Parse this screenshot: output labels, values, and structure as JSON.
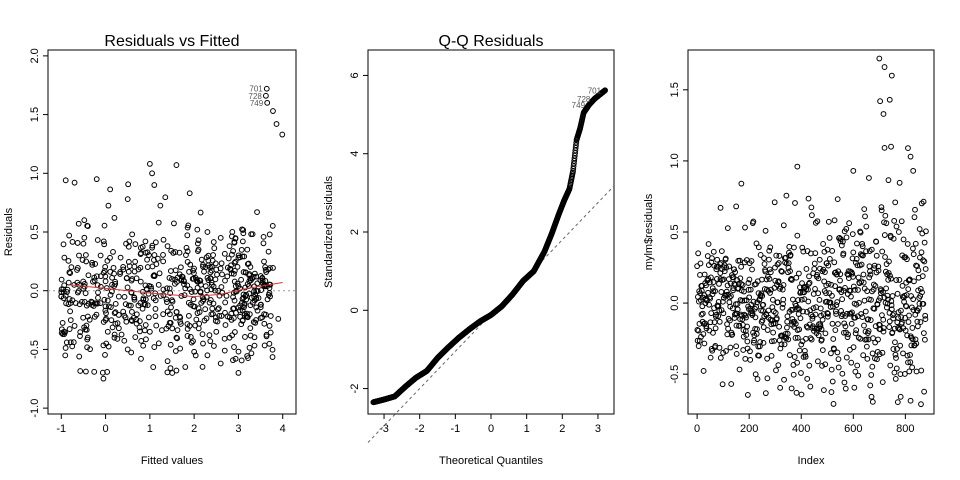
{
  "chart_data": [
    {
      "type": "scatter",
      "title": "Residuals vs Fitted",
      "xlabel": "Fitted values",
      "ylabel": "Residuals",
      "xlim": [
        -1.3,
        4.3
      ],
      "ylim": [
        -1.05,
        2.05
      ],
      "x_ticks": [
        -1,
        0,
        1,
        2,
        3,
        4
      ],
      "y_ticks": [
        -1.0,
        -0.5,
        0.0,
        0.5,
        1.0,
        1.5,
        2.0
      ],
      "x_tick_labels": [
        "-1",
        "0",
        "1",
        "2",
        "3",
        "4"
      ],
      "y_tick_labels": [
        "-1.0",
        "-0.5",
        "0.0",
        "0.5",
        "1.0",
        "1.5",
        "2.0"
      ],
      "reference_line": {
        "y": 0,
        "style": "dotted",
        "color": "#999999"
      },
      "smoother": {
        "color": "#dd3333",
        "points": [
          [
            -0.8,
            0.05
          ],
          [
            0.0,
            0.02
          ],
          [
            1.0,
            -0.02
          ],
          [
            2.0,
            -0.05
          ],
          [
            2.6,
            -0.03
          ],
          [
            3.2,
            0.02
          ],
          [
            4.0,
            0.07
          ]
        ]
      },
      "points": [
        [
          -0.9,
          0.94
        ],
        [
          -0.7,
          0.92
        ],
        [
          -0.2,
          0.95
        ],
        [
          1.0,
          1.08
        ],
        [
          1.05,
          1.0
        ],
        [
          1.6,
          1.07
        ],
        [
          1.1,
          0.9
        ],
        [
          0.5,
          0.78
        ],
        [
          1.9,
          0.83
        ],
        [
          -0.6,
          0.3
        ],
        [
          -0.4,
          0.55
        ],
        [
          0.2,
          0.62
        ],
        [
          0.6,
          0.48
        ],
        [
          1.2,
          0.58
        ],
        [
          2.3,
          0.5
        ],
        [
          2.8,
          0.38
        ],
        [
          3.2,
          0.35
        ],
        [
          -0.8,
          0.15
        ],
        [
          -0.3,
          0.22
        ],
        [
          0.1,
          0.28
        ],
        [
          0.4,
          0.18
        ],
        [
          0.8,
          0.32
        ],
        [
          1.3,
          0.25
        ],
        [
          1.7,
          0.2
        ],
        [
          2.1,
          0.35
        ],
        [
          2.5,
          0.18
        ],
        [
          3.0,
          0.28
        ],
        [
          3.4,
          0.12
        ],
        [
          -1.0,
          -0.05
        ],
        [
          -0.6,
          0.05
        ],
        [
          -0.3,
          -0.1
        ],
        [
          0.0,
          0.08
        ],
        [
          0.3,
          -0.05
        ],
        [
          0.6,
          0.1
        ],
        [
          0.9,
          -0.12
        ],
        [
          1.2,
          0.05
        ],
        [
          1.5,
          -0.08
        ],
        [
          1.8,
          0.02
        ],
        [
          2.1,
          -0.15
        ],
        [
          2.4,
          0.05
        ],
        [
          2.7,
          -0.1
        ],
        [
          3.0,
          0.04
        ],
        [
          3.3,
          -0.06
        ],
        [
          3.6,
          0.05
        ],
        [
          3.7,
          -0.02
        ],
        [
          -0.7,
          -0.3
        ],
        [
          -0.4,
          -0.22
        ],
        [
          0.0,
          -0.25
        ],
        [
          0.3,
          -0.32
        ],
        [
          0.7,
          -0.28
        ],
        [
          1.0,
          -0.35
        ],
        [
          1.3,
          -0.2
        ],
        [
          1.6,
          -0.4
        ],
        [
          1.9,
          -0.3
        ],
        [
          2.2,
          -0.45
        ],
        [
          2.5,
          -0.35
        ],
        [
          2.8,
          -0.4
        ],
        [
          3.1,
          -0.25
        ],
        [
          0.5,
          -0.5
        ],
        [
          1.1,
          -0.48
        ],
        [
          1.4,
          -0.6
        ],
        [
          1.8,
          -0.65
        ],
        [
          2.3,
          -0.55
        ],
        [
          2.6,
          -0.62
        ],
        [
          3.0,
          -0.7
        ],
        [
          0.8,
          -0.58
        ],
        [
          1.6,
          -0.68
        ],
        [
          2.0,
          -0.52
        ],
        [
          2.9,
          -0.48
        ],
        [
          3.9,
          -0.24
        ],
        [
          -0.5,
          0.4
        ],
        [
          0.9,
          0.42
        ],
        [
          1.4,
          0.38
        ],
        [
          2.6,
          0.45
        ],
        [
          3.1,
          0.42
        ],
        [
          0.2,
          -0.4
        ],
        [
          1.5,
          0.1
        ],
        [
          2.2,
          0.22
        ],
        [
          2.9,
          -0.15
        ],
        [
          3.5,
          -0.12
        ]
      ],
      "outliers": [
        [
          3.64,
          1.72
        ],
        [
          3.62,
          1.66
        ],
        [
          3.65,
          1.6
        ],
        [
          3.78,
          1.53
        ],
        [
          3.86,
          1.42
        ],
        [
          3.99,
          1.33
        ]
      ],
      "point_labels": [
        {
          "text": "701",
          "x": 3.64,
          "y": 1.72
        },
        {
          "text": "728",
          "x": 3.62,
          "y": 1.66
        },
        {
          "text": "749",
          "x": 3.65,
          "y": 1.6
        }
      ]
    },
    {
      "type": "scatter",
      "title": "Q-Q Residuals",
      "xlabel": "Theoretical Quantiles",
      "ylabel": "Standardized residuals",
      "xlim": [
        -3.45,
        3.45
      ],
      "ylim": [
        -2.65,
        6.65
      ],
      "x_ticks": [
        -3,
        -2,
        -1,
        0,
        1,
        2,
        3
      ],
      "y_ticks": [
        -2,
        0,
        2,
        4,
        6
      ],
      "x_tick_labels": [
        "-3",
        "-2",
        "-1",
        "0",
        "1",
        "2",
        "3"
      ],
      "y_tick_labels": [
        "-2",
        "0",
        "2",
        "4",
        "6"
      ],
      "reference_line": {
        "slope": 0.95,
        "intercept": -0.1,
        "style": "dashed",
        "color": "#666666"
      },
      "curve": [
        [
          -3.3,
          -2.35
        ],
        [
          -3.0,
          -2.28
        ],
        [
          -2.7,
          -2.2
        ],
        [
          -2.4,
          -1.95
        ],
        [
          -2.1,
          -1.72
        ],
        [
          -1.8,
          -1.55
        ],
        [
          -1.5,
          -1.22
        ],
        [
          -1.2,
          -0.95
        ],
        [
          -0.9,
          -0.7
        ],
        [
          -0.6,
          -0.48
        ],
        [
          -0.3,
          -0.28
        ],
        [
          0.0,
          -0.12
        ],
        [
          0.3,
          0.1
        ],
        [
          0.6,
          0.4
        ],
        [
          0.9,
          0.75
        ],
        [
          1.2,
          1.0
        ],
        [
          1.5,
          1.5
        ],
        [
          1.7,
          1.95
        ],
        [
          1.9,
          2.45
        ],
        [
          2.05,
          2.8
        ],
        [
          2.2,
          3.1
        ],
        [
          2.3,
          3.55
        ],
        [
          2.4,
          4.35
        ],
        [
          2.5,
          4.65
        ],
        [
          2.6,
          5.05
        ],
        [
          2.75,
          5.25
        ],
        [
          2.9,
          5.4
        ],
        [
          3.2,
          5.62
        ]
      ],
      "point_labels": [
        {
          "text": "701",
          "x": 3.2,
          "y": 5.62
        },
        {
          "text": "728",
          "x": 2.9,
          "y": 5.4
        },
        {
          "text": "749",
          "x": 2.75,
          "y": 5.25
        }
      ]
    },
    {
      "type": "scatter",
      "title": "",
      "xlabel": "Index",
      "ylabel": "mylm$residuals",
      "xlim": [
        -35,
        910
      ],
      "ylim": [
        -0.78,
        1.78
      ],
      "x_ticks": [
        0,
        200,
        400,
        600,
        800
      ],
      "y_ticks": [
        -0.5,
        0.0,
        0.5,
        1.0,
        1.5
      ],
      "x_tick_labels": [
        "0",
        "200",
        "400",
        "600",
        "800"
      ],
      "y_tick_labels": [
        "-0.5",
        "0.0",
        "0.5",
        "1.0",
        "1.5"
      ]
    }
  ]
}
